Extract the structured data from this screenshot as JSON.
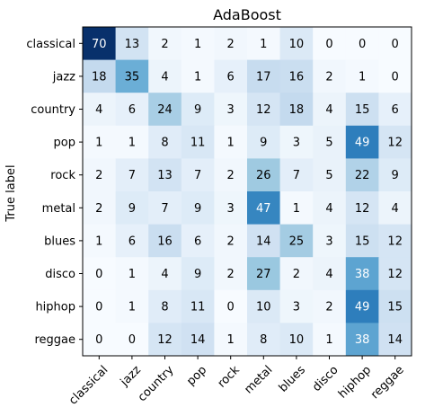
{
  "chart_data": {
    "type": "heatmap",
    "title": "AdaBoost",
    "ylabel": "True label",
    "xlabel": "",
    "colormap": "Blues",
    "colors": {
      "low": "#f7fbff",
      "high": "#08306b",
      "text_dark": "#000000",
      "text_light": "#ffffff"
    },
    "x_categories": [
      "classical",
      "jazz",
      "country",
      "pop",
      "rock",
      "metal",
      "blues",
      "disco",
      "hiphop",
      "reggae"
    ],
    "y_categories": [
      "classical",
      "jazz",
      "country",
      "pop",
      "rock",
      "metal",
      "blues",
      "disco",
      "hiphop",
      "reggae"
    ],
    "values": [
      [
        70,
        13,
        2,
        1,
        2,
        1,
        10,
        0,
        0,
        0
      ],
      [
        18,
        35,
        4,
        1,
        6,
        17,
        16,
        2,
        1,
        0
      ],
      [
        4,
        6,
        24,
        9,
        3,
        12,
        18,
        4,
        15,
        6
      ],
      [
        1,
        1,
        8,
        11,
        1,
        9,
        3,
        5,
        49,
        12
      ],
      [
        2,
        7,
        13,
        7,
        2,
        26,
        7,
        5,
        22,
        9
      ],
      [
        2,
        9,
        7,
        9,
        3,
        47,
        1,
        4,
        12,
        4
      ],
      [
        1,
        6,
        16,
        6,
        2,
        14,
        25,
        3,
        15,
        12
      ],
      [
        0,
        1,
        4,
        9,
        2,
        27,
        2,
        4,
        38,
        12
      ],
      [
        0,
        1,
        8,
        11,
        0,
        10,
        3,
        2,
        49,
        15
      ],
      [
        0,
        0,
        12,
        14,
        1,
        8,
        10,
        1,
        38,
        14
      ]
    ],
    "vmin": 0,
    "vmax": 70
  }
}
